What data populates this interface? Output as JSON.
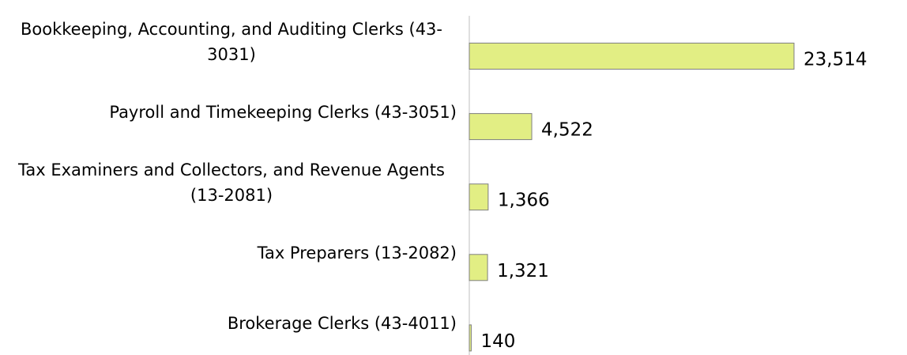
{
  "chart_data": {
    "type": "bar",
    "orientation": "horizontal",
    "categories": [
      "Bookkeeping, Accounting, and Auditing Clerks (43-3031)",
      "Payroll and Timekeeping Clerks (43-3051)",
      "Tax Examiners and Collectors, and Revenue Agents (13-2081)",
      "Tax Preparers (13-2082)",
      "Brokerage Clerks (43-4011)"
    ],
    "values": [
      23514,
      4522,
      1366,
      1321,
      140
    ],
    "value_labels": [
      "23,514",
      "4,522",
      "1,366",
      "1,321",
      "140"
    ],
    "color": "#e2ee84"
  }
}
